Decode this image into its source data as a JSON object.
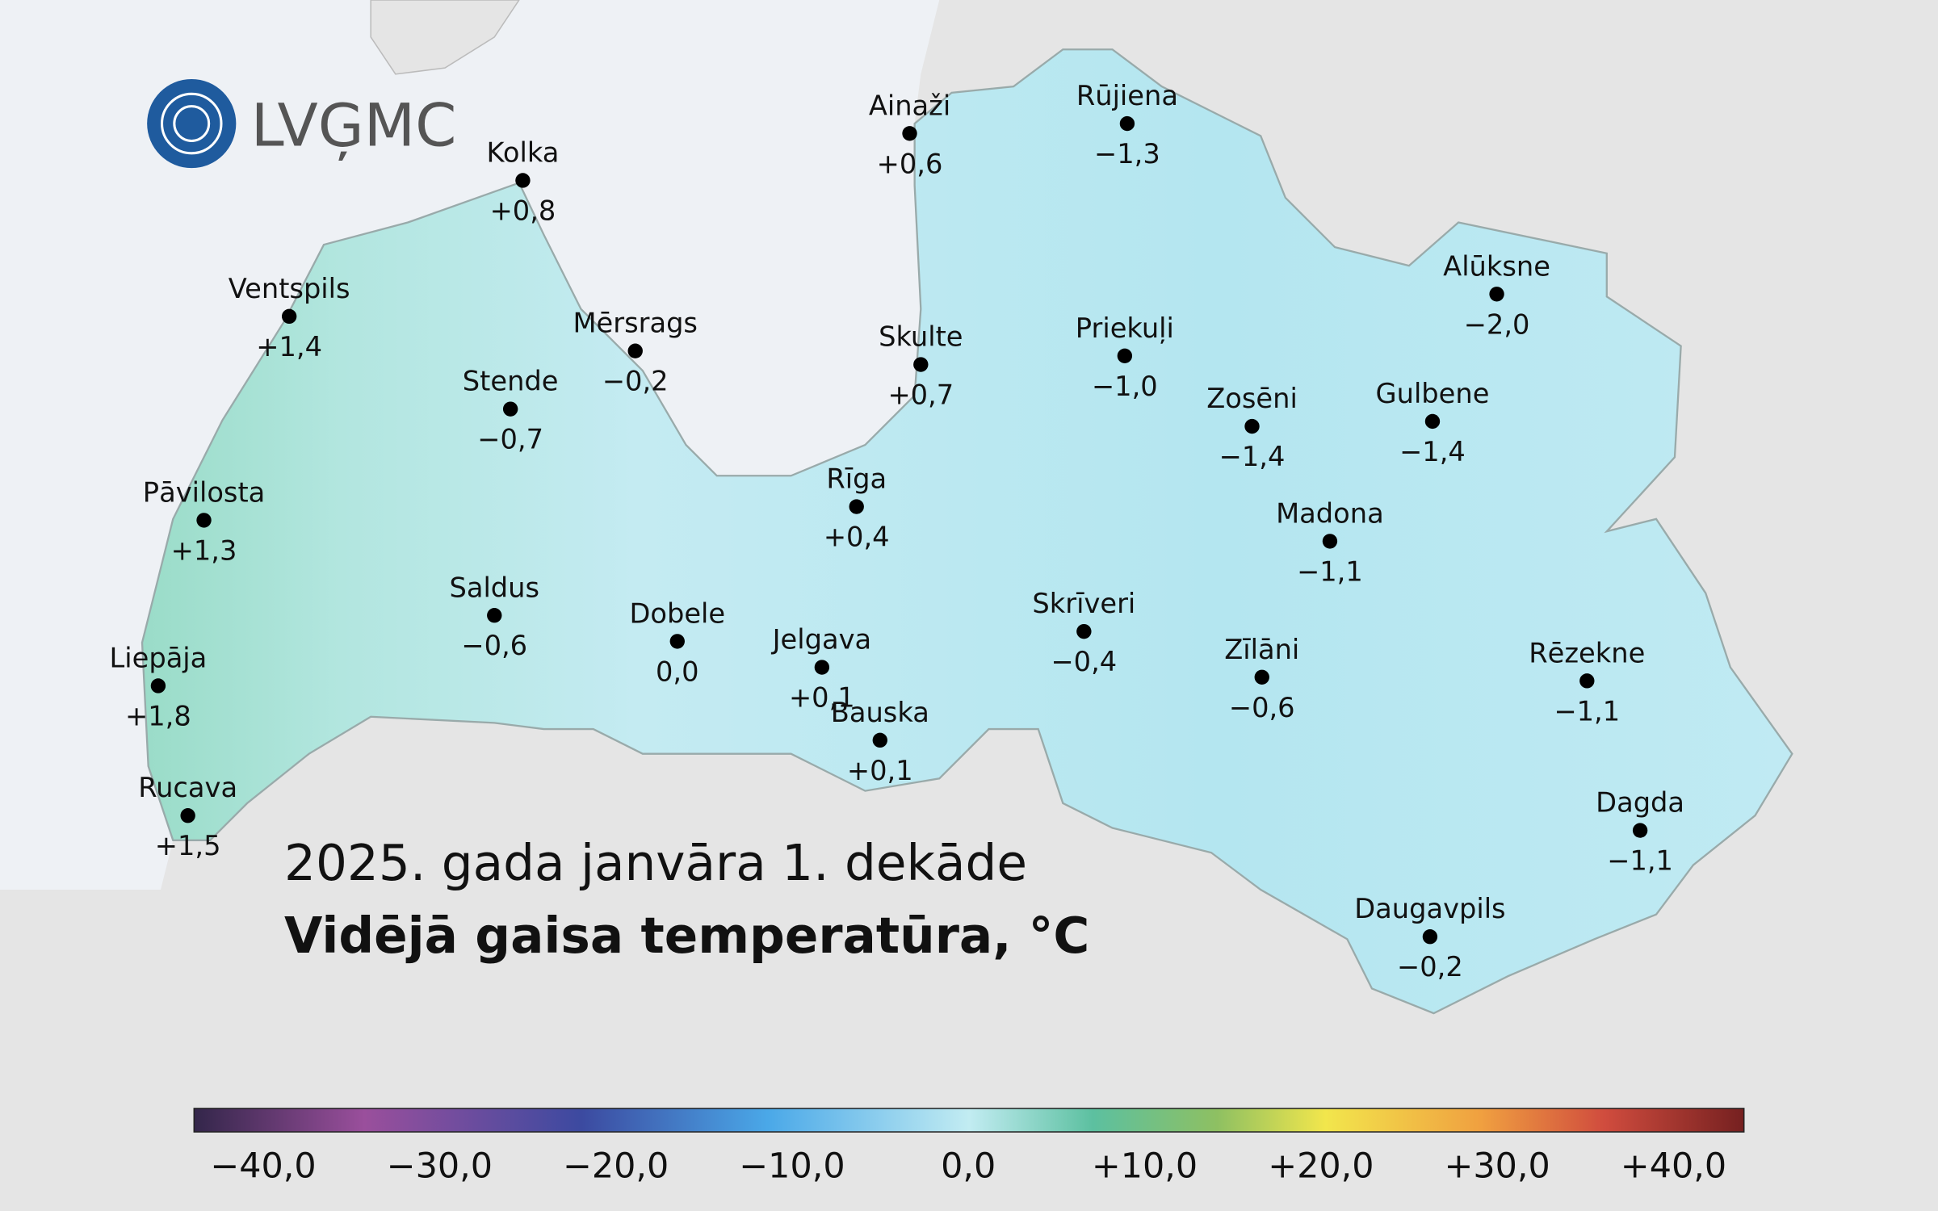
{
  "logo": {
    "text": "LVĢMC"
  },
  "title": {
    "line1": "2025. gada janvāra 1. dekāde",
    "line2": "Vidējā gaisa temperatūra, °C"
  },
  "stations": [
    {
      "name": "Ainaži",
      "value": "+0,6"
    },
    {
      "name": "Rūjiena",
      "value": "−1,3"
    },
    {
      "name": "Kolka",
      "value": "+0,8"
    },
    {
      "name": "Ventspils",
      "value": "+1,4"
    },
    {
      "name": "Mērsrags",
      "value": "−0,2"
    },
    {
      "name": "Stende",
      "value": "−0,7"
    },
    {
      "name": "Skulte",
      "value": "+0,7"
    },
    {
      "name": "Priekuļi",
      "value": "−1,0"
    },
    {
      "name": "Alūksne",
      "value": "−2,0"
    },
    {
      "name": "Zosēni",
      "value": "−1,4"
    },
    {
      "name": "Gulbene",
      "value": "−1,4"
    },
    {
      "name": "Pāvilosta",
      "value": "+1,3"
    },
    {
      "name": "Rīga",
      "value": "+0,4"
    },
    {
      "name": "Madona",
      "value": "−1,1"
    },
    {
      "name": "Saldus",
      "value": "−0,6"
    },
    {
      "name": "Dobele",
      "value": "0,0"
    },
    {
      "name": "Jelgava",
      "value": "+0,1"
    },
    {
      "name": "Skrīveri",
      "value": "−0,4"
    },
    {
      "name": "Zīlāni",
      "value": "−0,6"
    },
    {
      "name": "Rēzekne",
      "value": "−1,1"
    },
    {
      "name": "Liepāja",
      "value": "+1,8"
    },
    {
      "name": "Bauska",
      "value": "+0,1"
    },
    {
      "name": "Rucava",
      "value": "+1,5"
    },
    {
      "name": "Dagda",
      "value": "−1,1"
    },
    {
      "name": "Daugavpils",
      "value": "−0,2"
    }
  ],
  "legend": {
    "ticks": [
      "−40,0",
      "−30,0",
      "−20,0",
      "−10,0",
      "0,0",
      "+10,0",
      "+20,0",
      "+30,0",
      "+40,0"
    ]
  }
}
